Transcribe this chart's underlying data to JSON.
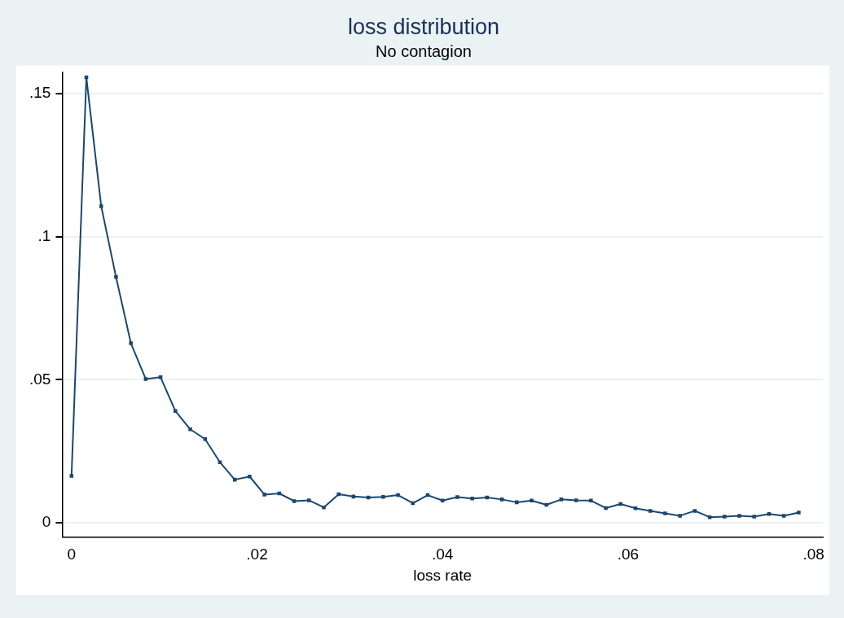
{
  "chart_data": {
    "type": "line",
    "title": "loss distribution",
    "subtitle": "No contagion",
    "xlabel": "loss rate",
    "x": [
      0,
      0.0016,
      0.0032,
      0.0048,
      0.0064,
      0.008,
      0.0096,
      0.0112,
      0.0128,
      0.0144,
      0.016,
      0.0176,
      0.0192,
      0.0208,
      0.0224,
      0.024,
      0.0256,
      0.0272,
      0.0288,
      0.0304,
      0.032,
      0.0336,
      0.0352,
      0.0368,
      0.0384,
      0.04,
      0.0416,
      0.0432,
      0.0448,
      0.0464,
      0.048,
      0.0496,
      0.0512,
      0.0528,
      0.0544,
      0.056,
      0.0576,
      0.0592,
      0.0608,
      0.0624,
      0.064,
      0.0656,
      0.0672,
      0.0688,
      0.0704,
      0.072,
      0.0736,
      0.0752,
      0.0768,
      0.0784
    ],
    "series": [
      {
        "color": "#1a476f",
        "values": [
          0.0164,
          0.1557,
          0.1107,
          0.0859,
          0.0628,
          0.0503,
          0.0509,
          0.0391,
          0.0327,
          0.0293,
          0.0212,
          0.0151,
          0.0162,
          0.0099,
          0.0103,
          0.0076,
          0.0079,
          0.0054,
          0.01,
          0.0092,
          0.0089,
          0.0091,
          0.0097,
          0.0069,
          0.0097,
          0.0078,
          0.009,
          0.0085,
          0.0089,
          0.0082,
          0.0072,
          0.0078,
          0.0063,
          0.0082,
          0.0079,
          0.0078,
          0.0052,
          0.0066,
          0.0051,
          0.0042,
          0.0033,
          0.0025,
          0.0042,
          0.002,
          0.0022,
          0.0025,
          0.0022,
          0.0031,
          0.0025,
          0.0036
        ]
      }
    ],
    "xlim": [
      -0.001,
      0.081
    ],
    "ylim": [
      -0.0049,
      0.1576
    ],
    "xticks": [
      0,
      {
        "value": 0.02,
        "label": ".02"
      },
      {
        "value": 0.04,
        "label": ".04"
      },
      {
        "value": 0.06,
        "label": ".06"
      },
      {
        "value": 0.08,
        "label": ".08"
      }
    ],
    "yticks": [
      0,
      {
        "value": 0.05,
        "label": ".05"
      },
      {
        "value": 0.1,
        "label": ".1"
      },
      {
        "value": 0.15,
        "label": ".15"
      }
    ],
    "grid": "y",
    "legend": false,
    "marker": "square",
    "line_style": "solid"
  }
}
